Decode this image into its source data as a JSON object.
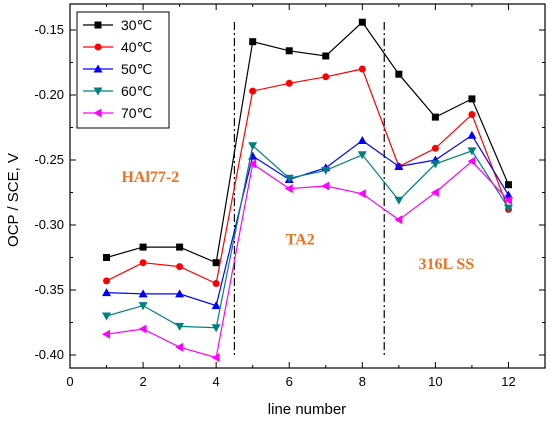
{
  "chart_data": {
    "type": "line",
    "title": "",
    "xlabel": "line number",
    "ylabel": "OCP / SCE,  V",
    "xlim": [
      0,
      13
    ],
    "ylim": [
      -0.41,
      -0.13
    ],
    "xticks": [
      0,
      2,
      4,
      6,
      8,
      10,
      12
    ],
    "yticks": [
      -0.4,
      -0.35,
      -0.3,
      -0.25,
      -0.2,
      -0.15
    ],
    "ytick_labels": [
      "-0.40",
      "-0.35",
      "-0.30",
      "-0.25",
      "-0.20",
      "-0.15"
    ],
    "legend_position": "top-left",
    "grid": false,
    "x": [
      1,
      2,
      3,
      4,
      5,
      6,
      7,
      8,
      9,
      10,
      11,
      12
    ],
    "series": [
      {
        "name": "30℃",
        "color": "#000000",
        "marker": "square",
        "values": [
          -0.325,
          -0.317,
          -0.317,
          -0.329,
          -0.159,
          -0.166,
          -0.17,
          -0.144,
          -0.184,
          -0.217,
          -0.203,
          -0.269
        ]
      },
      {
        "name": "40℃",
        "color": "#ff0000",
        "marker": "circle",
        "values": [
          -0.343,
          -0.329,
          -0.332,
          -0.345,
          -0.197,
          -0.191,
          -0.186,
          -0.18,
          -0.255,
          -0.241,
          -0.215,
          -0.288
        ]
      },
      {
        "name": "50℃",
        "color": "#0000ff",
        "marker": "triangle-up",
        "values": [
          -0.352,
          -0.353,
          -0.353,
          -0.362,
          -0.247,
          -0.265,
          -0.256,
          -0.235,
          -0.255,
          -0.25,
          -0.231,
          -0.277
        ]
      },
      {
        "name": "60℃",
        "color": "#008080",
        "marker": "triangle-down",
        "values": [
          -0.37,
          -0.362,
          -0.378,
          -0.379,
          -0.239,
          -0.264,
          -0.258,
          -0.246,
          -0.281,
          -0.253,
          -0.243,
          -0.287
        ]
      },
      {
        "name": "70℃",
        "color": "#ff00ff",
        "marker": "triangle-left",
        "values": [
          -0.384,
          -0.38,
          -0.394,
          -0.402,
          -0.253,
          -0.272,
          -0.27,
          -0.276,
          -0.296,
          -0.275,
          -0.251,
          -0.281
        ]
      }
    ],
    "dividers": [
      4.5,
      8.6
    ],
    "annotations": [
      {
        "text": "HAl77-2",
        "x": 2.2,
        "y": -0.267
      },
      {
        "text": "TA2",
        "x": 6.3,
        "y": -0.315
      },
      {
        "text": "316L SS",
        "x": 10.3,
        "y": -0.334
      }
    ]
  }
}
